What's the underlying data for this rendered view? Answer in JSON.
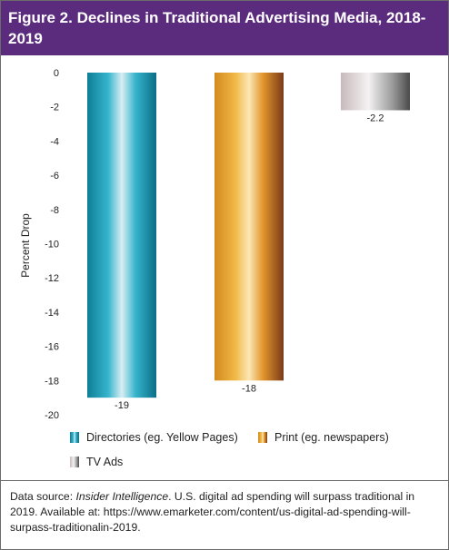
{
  "header": {
    "title": "Figure 2. Declines in Traditional Advertising Media, 2018-2019"
  },
  "chart_data": {
    "type": "bar",
    "title": "Figure 2. Declines in Traditional Advertising Media, 2018-2019",
    "xlabel": "",
    "ylabel": "Percent Drop",
    "ylim": [
      -20,
      0
    ],
    "yticks": [
      0,
      -2,
      -4,
      -6,
      -8,
      -10,
      -12,
      -14,
      -16,
      -18,
      -20
    ],
    "categories": [
      "Directories (eg. Yellow Pages)",
      "Print (eg. newspapers)",
      "TV Ads"
    ],
    "values": [
      -19,
      -18,
      -2.2
    ],
    "data_labels": [
      "-19",
      "-18",
      "-2.2"
    ],
    "series_colors": [
      "#1a9bb5",
      "#e5a02c",
      "#8c8c8c"
    ],
    "grid": false,
    "legend_position": "bottom-left"
  },
  "footer": {
    "source_label": "Data source: ",
    "source_name": "Insider Intelligence",
    "source_rest": ". U.S. digital ad spending will surpass traditional in 2019. Available at: https://www.emarketer.com/content/us-digital-ad-spending-will-surpass-traditionalin-2019."
  }
}
